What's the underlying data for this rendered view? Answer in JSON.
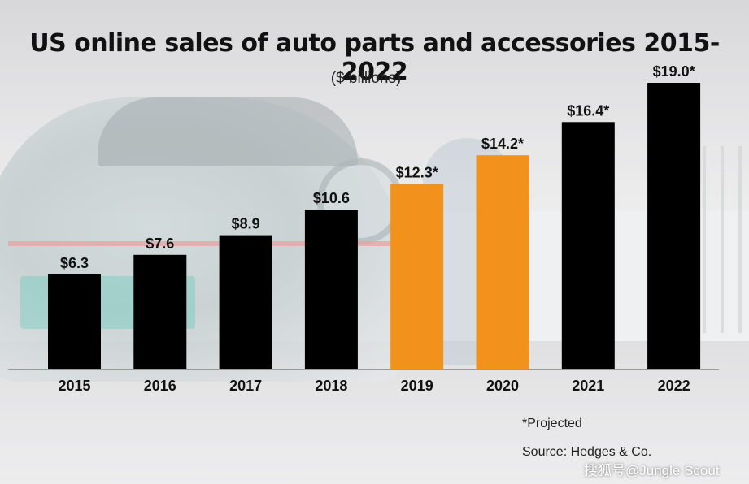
{
  "chart_data": {
    "type": "bar",
    "title": "US online sales of auto parts and accessories 2015-2022",
    "subtitle": "($ billions)",
    "categories": [
      "2015",
      "2016",
      "2017",
      "2018",
      "2019",
      "2020",
      "2021",
      "2022"
    ],
    "values": [
      6.3,
      7.6,
      8.9,
      10.6,
      12.3,
      14.2,
      16.4,
      19.0
    ],
    "data_labels": [
      "$6.3",
      "$7.6",
      "$8.9",
      "$10.6",
      "$12.3*",
      "$14.2*",
      "$16.4*",
      "$19.0*"
    ],
    "bar_colors": [
      "#000000",
      "#000000",
      "#000000",
      "#000000",
      "#f2911b",
      "#f2911b",
      "#000000",
      "#000000"
    ],
    "ylim": [
      0,
      19.0
    ],
    "grid": false,
    "xlabel": "",
    "ylabel": ""
  },
  "notes": {
    "projected": "*Projected",
    "source": "Source: Hedges & Co."
  },
  "watermark": "搜狐号@Jungle Scout"
}
